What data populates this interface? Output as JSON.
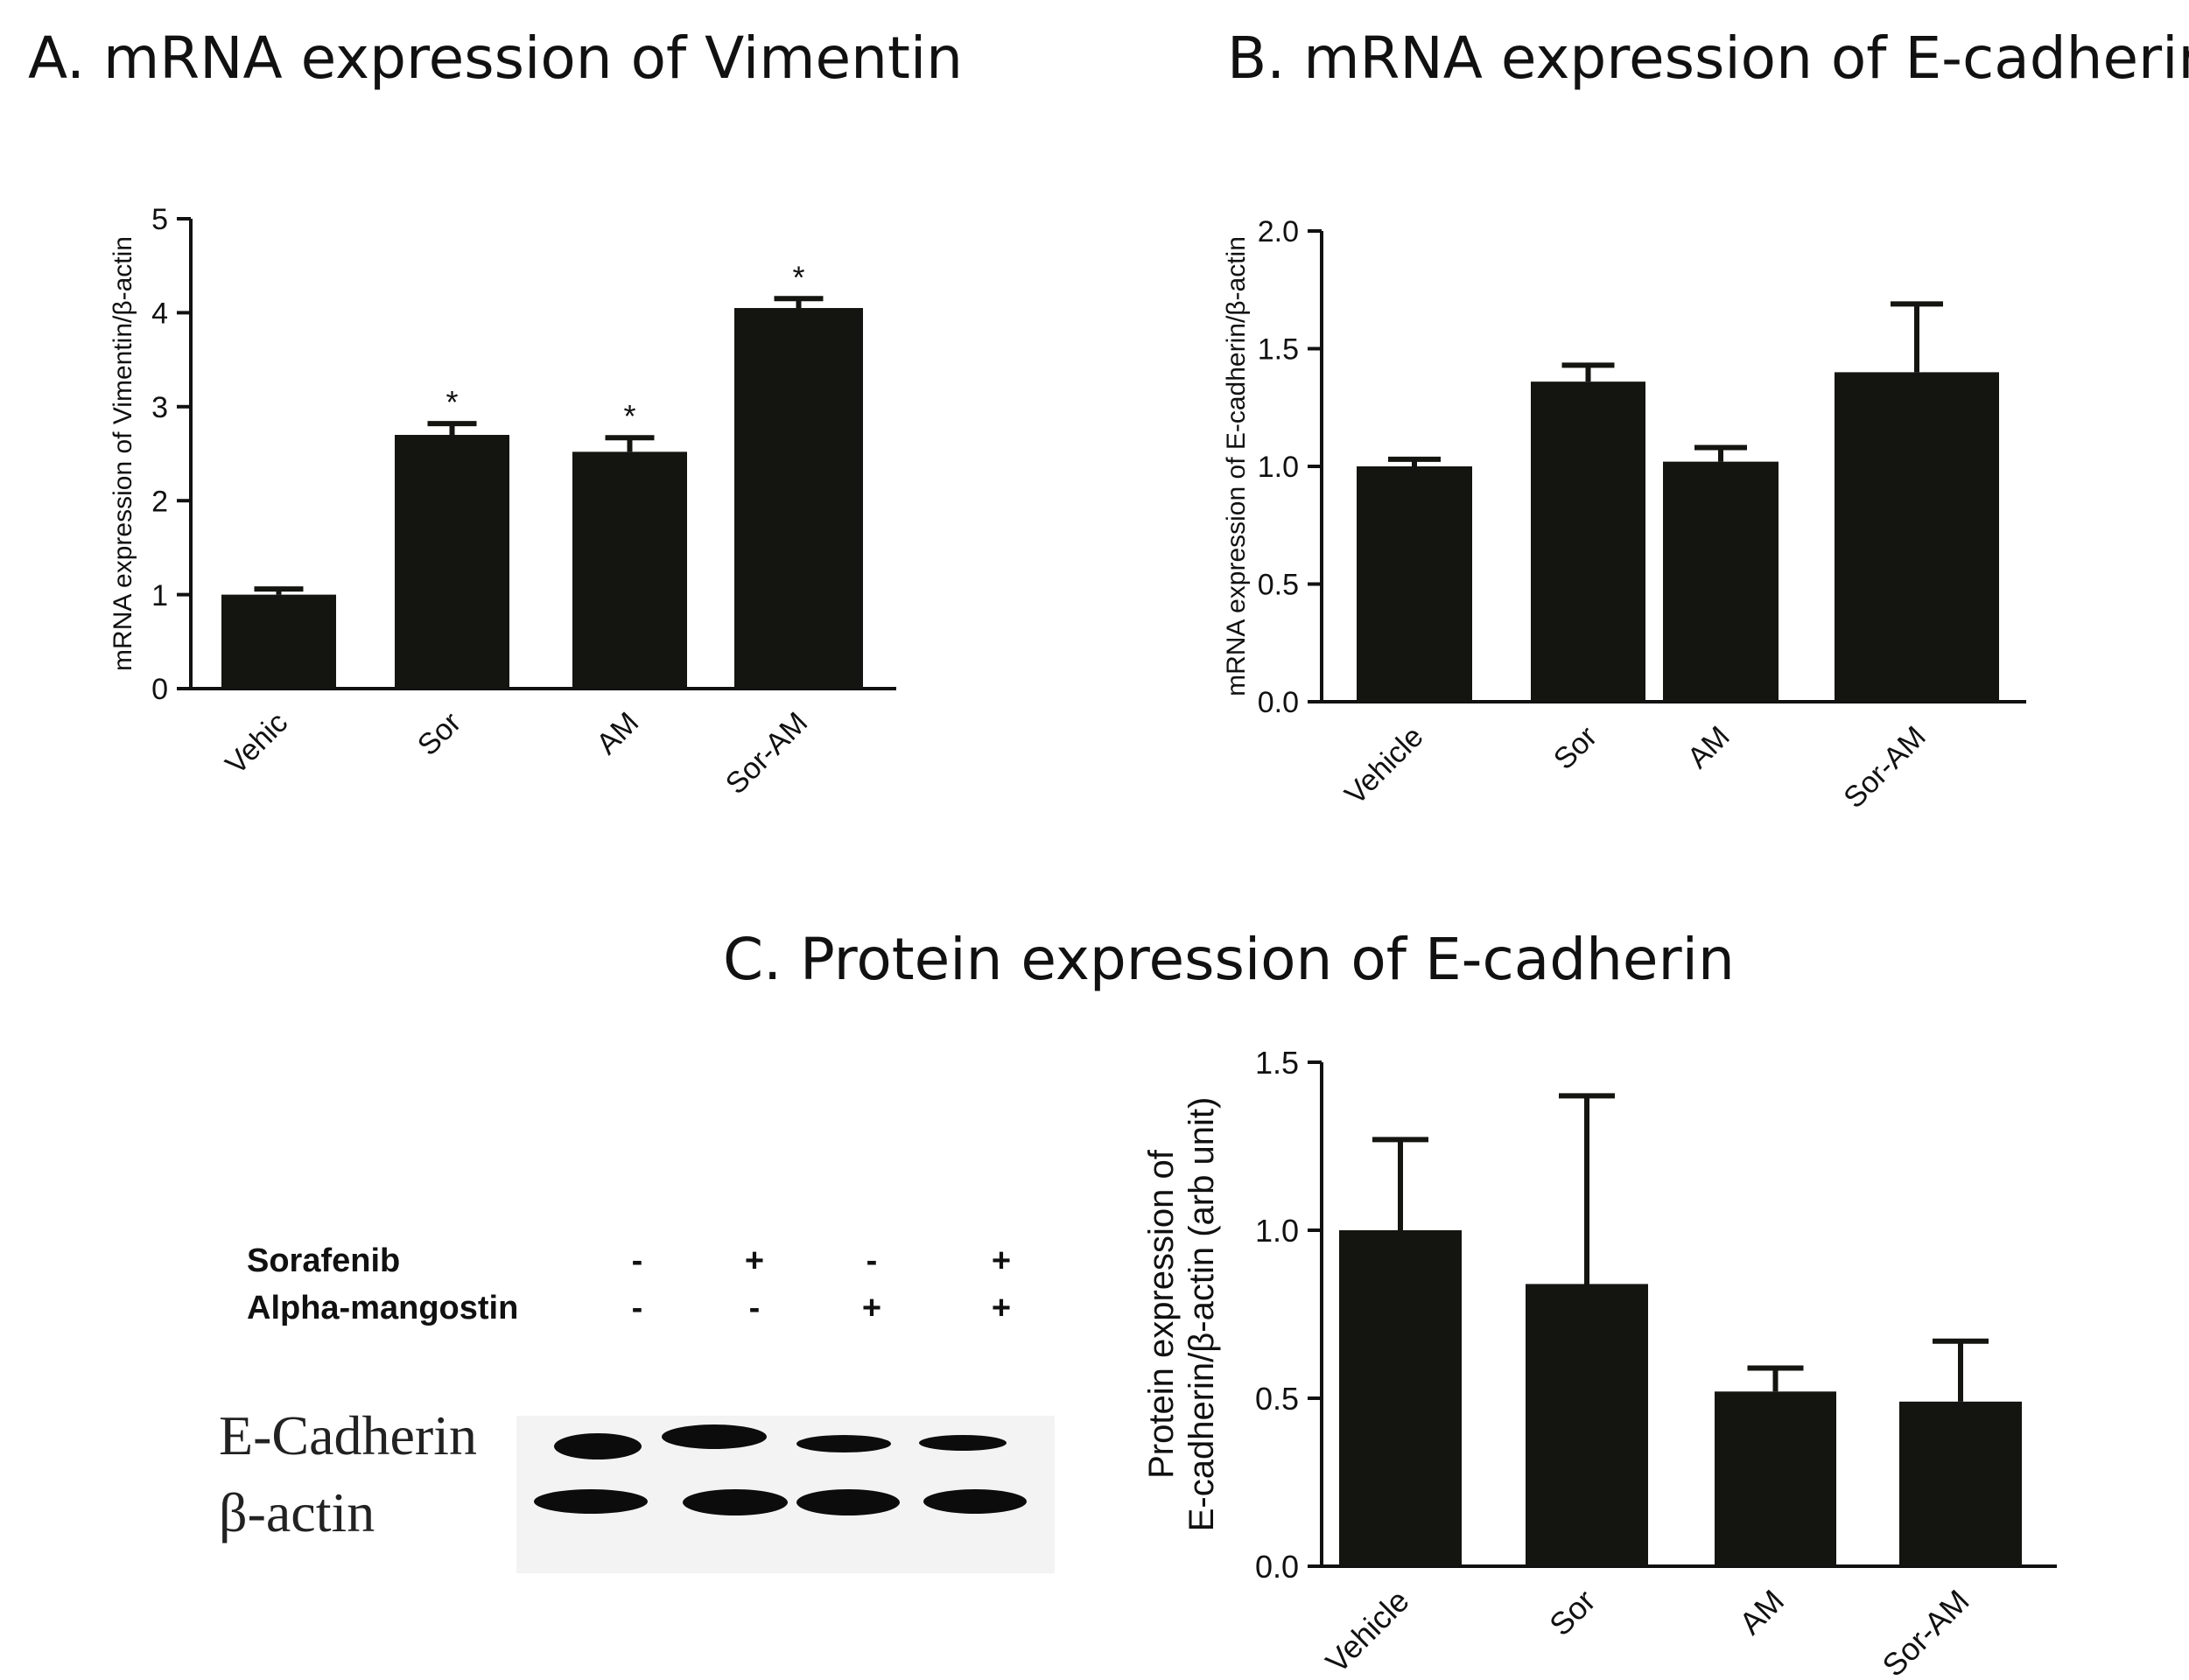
{
  "panels": {
    "a_title": "A. mRNA expression of  Vimentin",
    "b_title": "B. mRNA expression of  E-cadherin",
    "c_title": "C. Protein expression of  E-cadherin"
  },
  "western_blot": {
    "row_labels": [
      "Sorafenib",
      "Alpha-mangostin"
    ],
    "sorafenib": [
      "-",
      "+",
      "-",
      "+"
    ],
    "alpha_mangostin": [
      "-",
      "-",
      "+",
      "+"
    ],
    "band_labels": [
      "E-Cadherin",
      "β-actin"
    ]
  },
  "chart_data": [
    {
      "type": "bar",
      "title": "",
      "categories": [
        "Vehic",
        "Sor",
        "AM",
        "Sor-AM"
      ],
      "values": [
        1.0,
        2.7,
        2.52,
        4.05
      ],
      "errors": [
        0.06,
        0.12,
        0.15,
        0.1
      ],
      "annotations": [
        "",
        "*",
        "*",
        "*"
      ],
      "ylabel": "mRNA expression of Vimentin/β-actin",
      "xlabel": "",
      "ylim": [
        0,
        5
      ],
      "yticks": [
        0,
        1,
        2,
        3,
        4,
        5
      ],
      "ytick_labels": [
        "0",
        "1",
        "2",
        "3",
        "4",
        "5"
      ],
      "bar_color": "#141410"
    },
    {
      "type": "bar",
      "title": "",
      "categories": [
        "Vehicle",
        "Sor",
        "AM",
        "Sor-AM"
      ],
      "values": [
        1.0,
        1.36,
        1.02,
        1.4
      ],
      "errors": [
        0.03,
        0.07,
        0.06,
        0.29
      ],
      "ylabel": "mRNA expression of E-cadherin/β-actin",
      "xlabel": "",
      "ylim": [
        0,
        2.0
      ],
      "yticks": [
        0,
        0.5,
        1.0,
        1.5,
        2.0
      ],
      "ytick_labels": [
        "0.0",
        "0.5",
        "1.0",
        "1.5",
        "2.0"
      ],
      "bar_color": "#141410"
    },
    {
      "type": "bar",
      "title": "",
      "categories": [
        "Vehicle",
        "Sor",
        "AM",
        "Sor-AM"
      ],
      "values": [
        1.0,
        0.84,
        0.52,
        0.49
      ],
      "errors": [
        0.27,
        0.56,
        0.07,
        0.18
      ],
      "ylabel": "Protein expression of E-cadherin/β-actin (arb unit)",
      "ylabel_lines": [
        "Protein expression of",
        "E-cadherin/β-actin (arb unit)"
      ],
      "xlabel": "",
      "ylim": [
        0,
        1.5
      ],
      "yticks": [
        0,
        0.5,
        1.0,
        1.5
      ],
      "ytick_labels": [
        "0.0",
        "0.5",
        "1.0",
        "1.5"
      ],
      "bar_color": "#141410"
    }
  ]
}
